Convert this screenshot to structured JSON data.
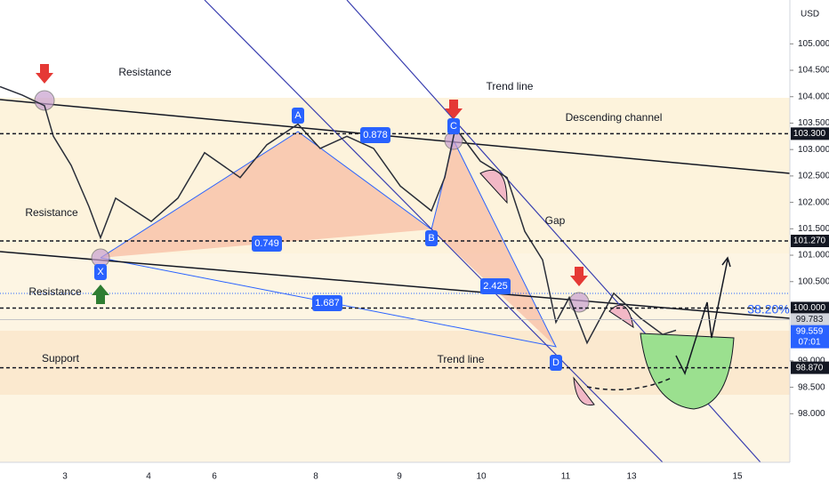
{
  "chart_data": {
    "type": "line",
    "currency": "USD",
    "series": [
      {
        "color": "#2a2e39",
        "values": [
          104.19,
          104.03,
          103.83,
          103.25,
          102.7,
          101.92,
          101.33,
          102.08,
          101.64,
          102.08,
          102.94,
          102.47,
          103.09,
          103.48,
          103.02,
          103.25,
          103.02,
          102.31,
          101.84,
          102.47,
          103.41,
          102.78,
          102.47,
          101.45,
          100.91,
          99.73,
          100.2,
          99.34,
          100.28,
          99.81,
          99.5,
          99.58
        ]
      }
    ],
    "ylim": [
      97.08,
      105.83
    ],
    "yticks": [
      {
        "value": 98,
        "label": "98.000"
      },
      {
        "value": 98.5,
        "label": "98.500"
      },
      {
        "value": 99,
        "label": "99.000"
      },
      {
        "value": 100.5,
        "label": "100.500"
      },
      {
        "value": 101,
        "label": "101.000"
      },
      {
        "value": 101.5,
        "label": "101.500"
      },
      {
        "value": 102,
        "label": "102.000"
      },
      {
        "value": 102.5,
        "label": "102.500"
      },
      {
        "value": 103,
        "label": "103.000"
      },
      {
        "value": 103.5,
        "label": "103.500"
      },
      {
        "value": 104,
        "label": "104.000"
      },
      {
        "value": 104.5,
        "label": "104.500"
      },
      {
        "value": 105,
        "label": "105.000"
      }
    ],
    "x_labels": [
      "3",
      "4",
      "6",
      "8",
      "9",
      "10",
      "11",
      "13",
      "15"
    ],
    "levels": [
      {
        "value": 103.3,
        "label": "103.300"
      },
      {
        "value": 101.27,
        "label": "101.270"
      },
      {
        "value": 100,
        "label": "100.000"
      },
      {
        "value": 98.87,
        "label": "98.870"
      }
    ],
    "last_price": {
      "value": 99.783,
      "label": "99.783"
    },
    "current_price": {
      "value": 99.559,
      "label": "99.559",
      "countdown": "07:01"
    },
    "annotations": [
      "Resistance",
      "Resistance",
      "Resistance",
      "Support",
      "Trend line",
      "Descending channel",
      "Gap",
      "Trend line",
      "38.20%"
    ],
    "pattern_points": [
      "X",
      "A",
      "B",
      "C",
      "D"
    ],
    "ratios": [
      "0.878",
      "0.749",
      "1.687",
      "2.425"
    ]
  }
}
